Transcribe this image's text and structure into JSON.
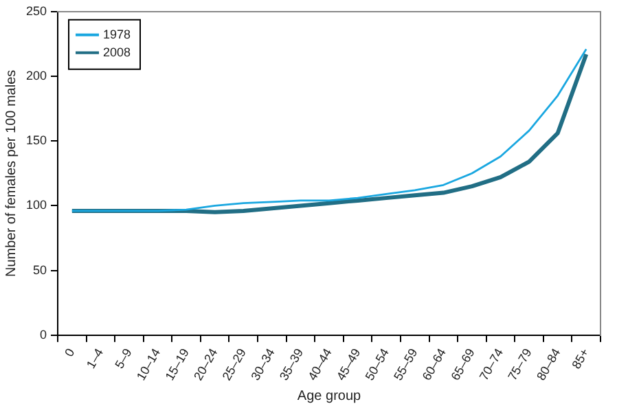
{
  "chart_data": {
    "type": "line",
    "xlabel": "Age group",
    "ylabel": "Number of females per 100 males",
    "categories": [
      "0",
      "1–4",
      "5–9",
      "10–14",
      "15–19",
      "20–24",
      "25–29",
      "30–34",
      "35–39",
      "40–44",
      "45–49",
      "50–54",
      "55–59",
      "60–64",
      "65–69",
      "70–74",
      "75–79",
      "80–84",
      "85+"
    ],
    "series": [
      {
        "name": "1978",
        "color": "#1aa7e0",
        "values": [
          96,
          96,
          96,
          96,
          97,
          100,
          102,
          103,
          104,
          104,
          106,
          109,
          112,
          116,
          125,
          138,
          158,
          185,
          221
        ]
      },
      {
        "name": "2008",
        "color": "#216e85",
        "values": [
          96,
          96,
          96,
          96,
          96,
          95,
          96,
          98,
          100,
          102,
          104,
          106,
          108,
          110,
          115,
          122,
          134,
          156,
          217
        ]
      }
    ],
    "ylim": [
      0,
      250
    ],
    "yticks": [
      0,
      50,
      100,
      150,
      200,
      250
    ],
    "grid": false,
    "legend": "top left",
    "marker": "none",
    "line_style": "solid"
  }
}
